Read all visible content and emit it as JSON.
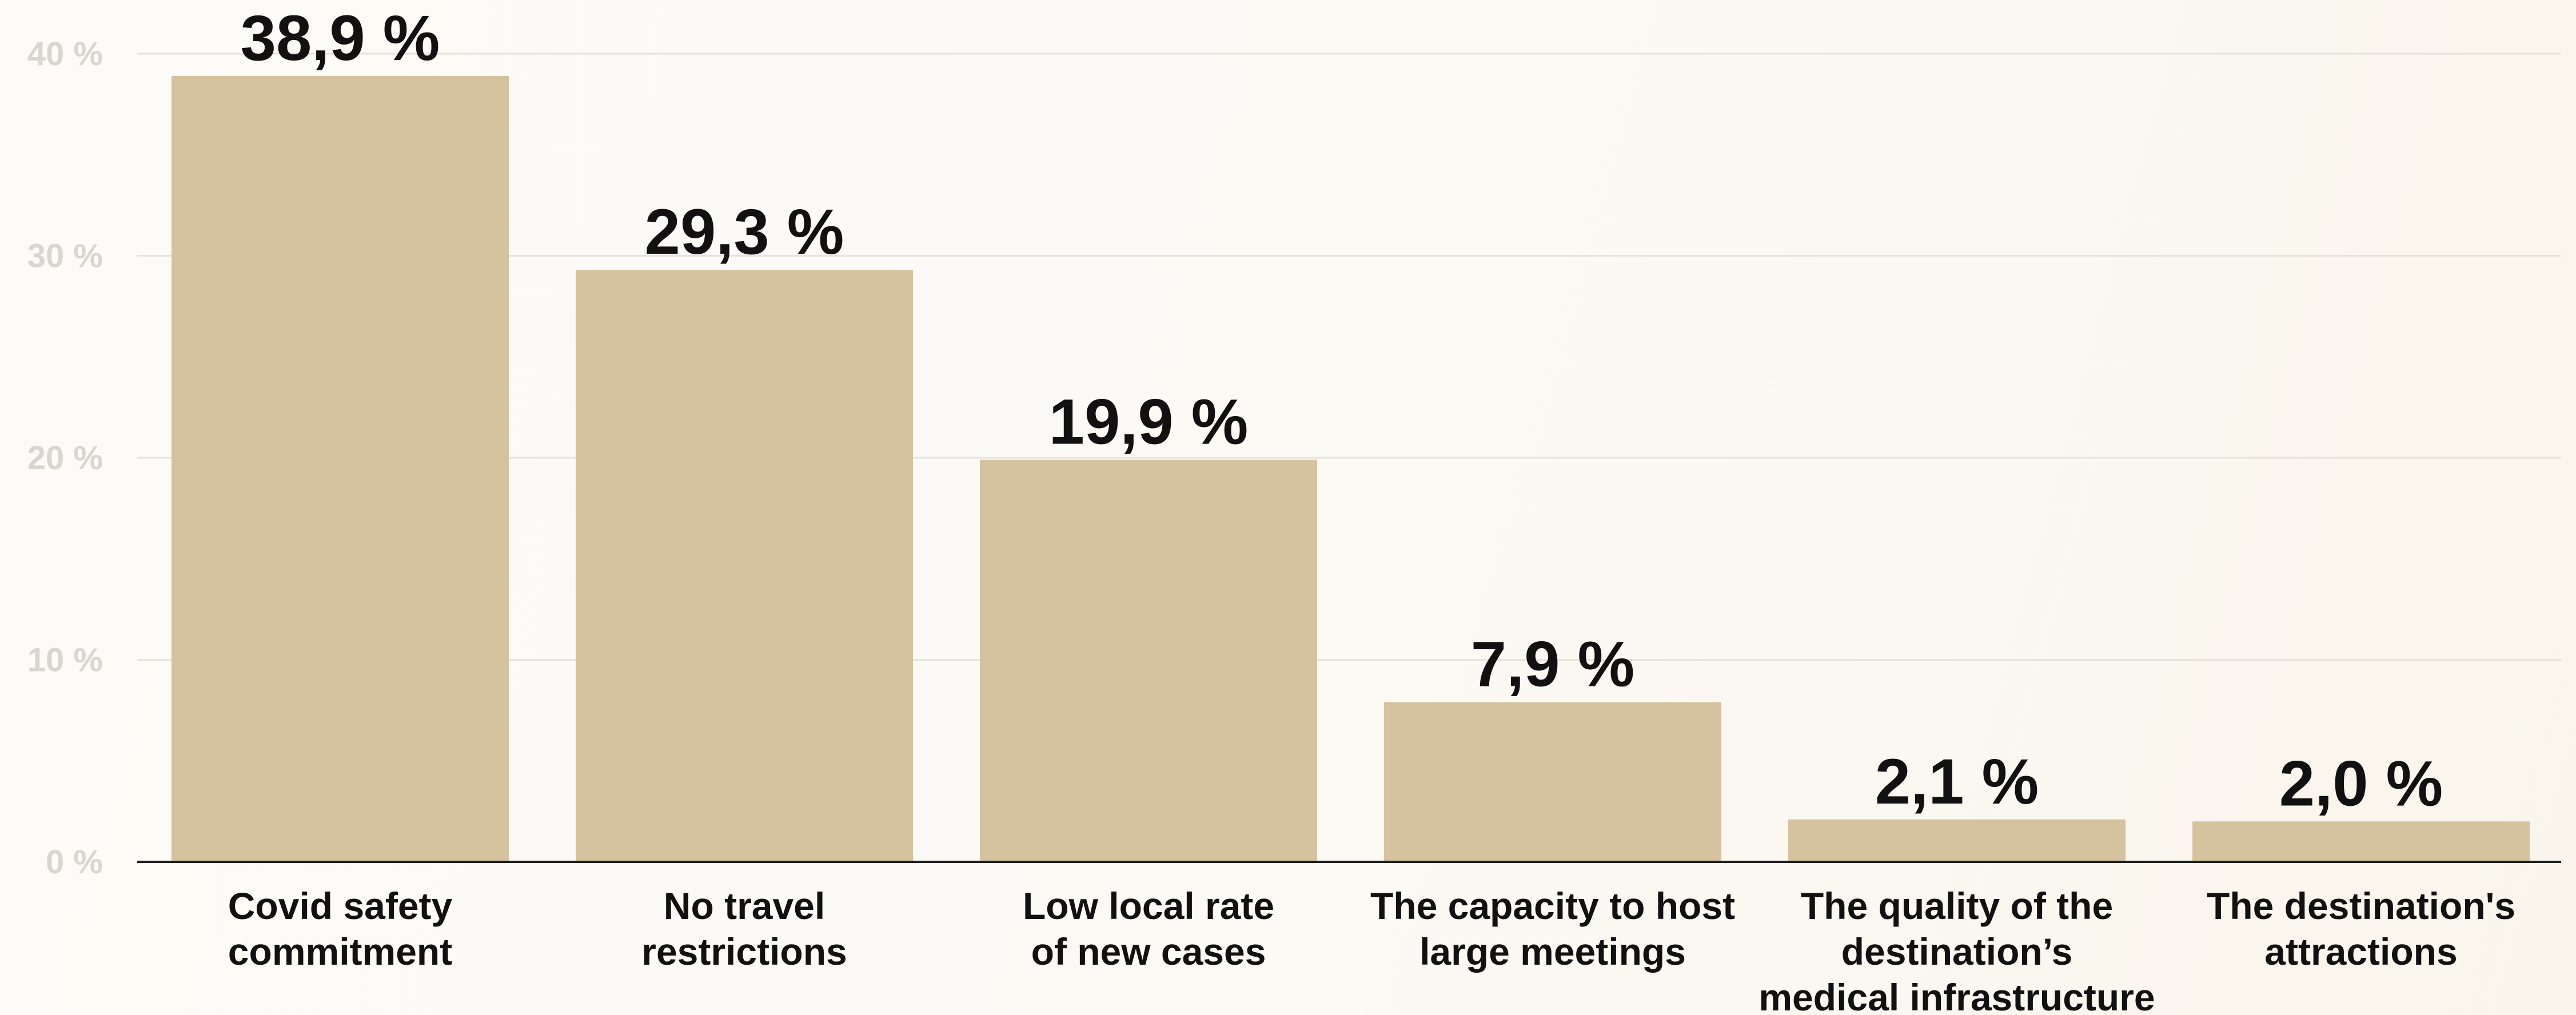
{
  "chart_data": {
    "type": "bar",
    "categories": [
      [
        "Covid safety",
        "commitment"
      ],
      [
        "No travel",
        "restrictions"
      ],
      [
        "Low local rate",
        "of new cases"
      ],
      [
        "The capacity to host",
        "large meetings"
      ],
      [
        "The quality of the",
        "destination’s",
        "medical infrastructure"
      ],
      [
        "The destination's",
        "attractions"
      ]
    ],
    "values": [
      38.9,
      29.3,
      19.9,
      7.9,
      2.1,
      2.0
    ],
    "data_labels": [
      "38,9 %",
      "29,3 %",
      "19,9 %",
      "7,9 %",
      "2,1 %",
      "2,0 %"
    ],
    "ylim": [
      0,
      40
    ],
    "yticks": [
      0,
      10,
      20,
      30,
      40
    ],
    "ytick_labels": [
      "0 %",
      "10 %",
      "20 %",
      "30 %",
      "40 %"
    ],
    "grid": true,
    "bar_color": "#d5c3a0"
  }
}
